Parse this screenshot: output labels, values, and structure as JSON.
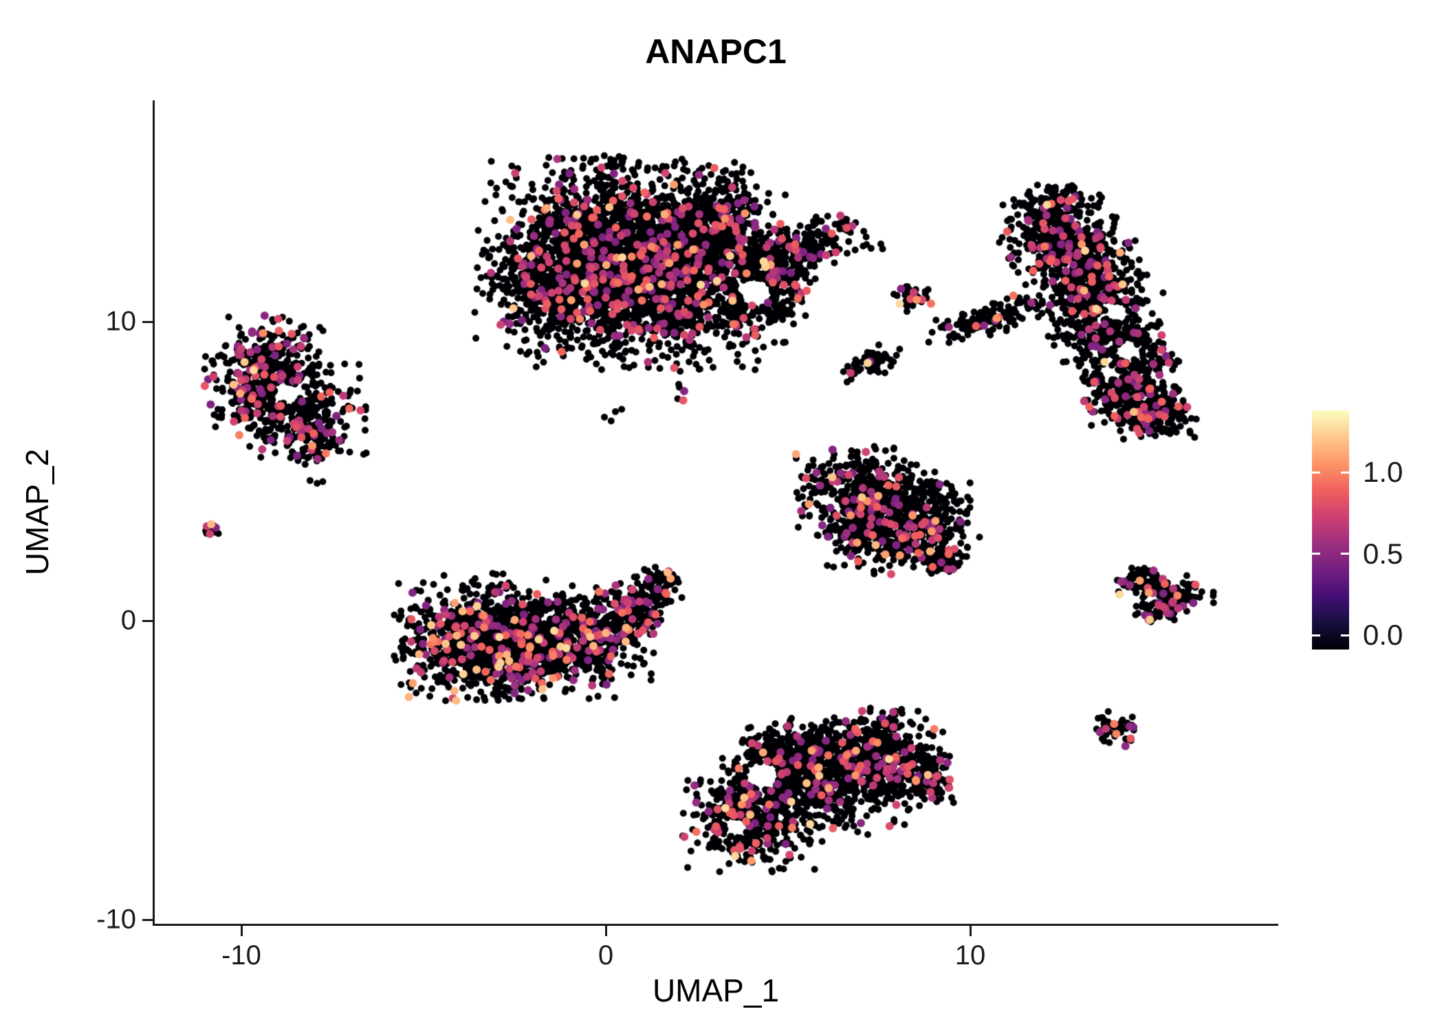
{
  "title": "ANAPC1",
  "chart_data": {
    "type": "scatter",
    "title": "ANAPC1",
    "subtitle": "",
    "xlabel": "UMAP_1",
    "ylabel": "UMAP_2",
    "xlim": [
      -12.4,
      18.4
    ],
    "ylim": [
      -10.2,
      17.4
    ],
    "x_ticks": [
      -10,
      0,
      10
    ],
    "x_tick_labels": [
      "-10",
      "0",
      "10"
    ],
    "y_ticks": [
      -10,
      0,
      10
    ],
    "y_tick_labels": [
      "-10",
      "0",
      "10"
    ],
    "grid": false,
    "background": "#ffffff",
    "colormap": "magma",
    "colormap_stops": [
      "#000004",
      "#180F3E",
      "#440F76",
      "#721F81",
      "#9E2F7F",
      "#CD4071",
      "#F1605D",
      "#FD9567",
      "#FEC98D",
      "#FCFDBF"
    ],
    "point_color_zero": "#000004",
    "value_range": [
      0,
      1.4
    ],
    "legend": {
      "position": "right",
      "tick_labels": [
        "1.0",
        "0.5",
        "0.0"
      ],
      "tick_values": [
        1.0,
        0.5,
        0.0
      ]
    },
    "seed": 42,
    "point_radius": 5,
    "point_radius_colored": 6,
    "value_model": {
      "base": 0.5,
      "span": 0.45,
      "power": 1.3,
      "high_min": 0.95,
      "high_max": 1.3
    },
    "clusters": [
      {
        "name": "top-center-large",
        "nonzero": 0.1,
        "high": 0.1,
        "blobs": [
          [
            0.2,
            12.8,
            1.6,
            1.2,
            1400,
            0
          ],
          [
            1.6,
            10.9,
            1.6,
            1.15,
            1250,
            0
          ],
          [
            -1.3,
            11.3,
            1.0,
            1.1,
            500,
            0
          ],
          [
            2.9,
            13.3,
            0.9,
            0.85,
            420,
            0
          ],
          [
            5.0,
            12.4,
            0.85,
            0.42,
            260,
            20
          ],
          [
            4.5,
            10.9,
            0.55,
            0.5,
            190,
            0
          ],
          [
            6.6,
            13.3,
            0.22,
            0.18,
            14,
            0
          ]
        ]
      },
      {
        "name": "left-upper",
        "nonzero": 0.12,
        "high": 0.1,
        "blobs": [
          [
            -9.3,
            8.6,
            0.75,
            0.7,
            300,
            0
          ],
          [
            -8.4,
            7.0,
            0.8,
            0.7,
            300,
            0
          ],
          [
            -9.9,
            7.3,
            0.45,
            0.5,
            100,
            0
          ],
          [
            -8.0,
            5.95,
            0.4,
            0.33,
            80,
            0
          ]
        ]
      },
      {
        "name": "left-tiny-dot",
        "nonzero": 0.25,
        "high": 0.2,
        "blobs": [
          [
            -10.85,
            3.0,
            0.12,
            0.1,
            14,
            0
          ]
        ]
      },
      {
        "name": "center-left-lower",
        "nonzero": 0.13,
        "high": 0.25,
        "blobs": [
          [
            -3.6,
            -0.6,
            1.0,
            0.95,
            720,
            0
          ],
          [
            -1.9,
            -0.9,
            1.1,
            0.8,
            680,
            0
          ],
          [
            -0.2,
            -0.4,
            0.8,
            0.7,
            300,
            0
          ],
          [
            0.9,
            0.6,
            0.5,
            0.42,
            130,
            30
          ],
          [
            1.6,
            1.2,
            0.28,
            0.26,
            45,
            0
          ]
        ]
      },
      {
        "name": "center-right-mid",
        "nonzero": 0.11,
        "high": 0.12,
        "blobs": [
          [
            7.2,
            4.3,
            0.9,
            0.68,
            430,
            0
          ],
          [
            8.5,
            3.2,
            0.8,
            0.72,
            400,
            0
          ],
          [
            7.0,
            2.8,
            0.5,
            0.5,
            130,
            0
          ],
          [
            9.2,
            2.1,
            0.34,
            0.28,
            60,
            0
          ]
        ]
      },
      {
        "name": "bottom-center",
        "nonzero": 0.09,
        "high": 0.15,
        "blobs": [
          [
            4.0,
            -6.6,
            0.85,
            0.8,
            480,
            0
          ],
          [
            5.8,
            -5.2,
            1.15,
            0.85,
            720,
            0
          ],
          [
            7.6,
            -4.4,
            0.8,
            0.68,
            360,
            0
          ],
          [
            4.8,
            -4.5,
            0.55,
            0.45,
            180,
            0
          ],
          [
            8.6,
            -5.3,
            0.5,
            0.45,
            120,
            0
          ]
        ]
      },
      {
        "name": "right-large-curved",
        "nonzero": 0.1,
        "high": 0.08,
        "blobs": [
          [
            12.5,
            13.0,
            0.75,
            0.7,
            340,
            0
          ],
          [
            13.1,
            11.5,
            0.7,
            0.78,
            340,
            0
          ],
          [
            13.7,
            9.8,
            0.7,
            0.85,
            370,
            0
          ],
          [
            14.4,
            8.0,
            0.65,
            0.75,
            320,
            0
          ],
          [
            15.1,
            6.9,
            0.5,
            0.45,
            170,
            0
          ],
          [
            12.2,
            13.9,
            0.38,
            0.28,
            60,
            0
          ]
        ]
      },
      {
        "name": "small-mid-round",
        "nonzero": 0.15,
        "high": 0.3,
        "blobs": [
          [
            8.4,
            10.8,
            0.26,
            0.2,
            40,
            0
          ]
        ]
      },
      {
        "name": "small-mid-elongated",
        "nonzero": 0.12,
        "high": 0.25,
        "blobs": [
          [
            10.5,
            10.1,
            0.8,
            0.25,
            120,
            18
          ]
        ]
      },
      {
        "name": "small-mid-diagonal",
        "nonzero": 0.12,
        "high": 0.2,
        "blobs": [
          [
            7.3,
            8.6,
            0.42,
            0.22,
            55,
            30
          ]
        ]
      },
      {
        "name": "right-small-v",
        "nonzero": 0.15,
        "high": 0.3,
        "blobs": [
          [
            14.7,
            1.3,
            0.33,
            0.28,
            65,
            0
          ],
          [
            15.6,
            1.0,
            0.5,
            0.26,
            85,
            -15
          ],
          [
            15.2,
            0.4,
            0.4,
            0.2,
            55,
            10
          ]
        ]
      },
      {
        "name": "right-tiny",
        "nonzero": 0.15,
        "high": 0.3,
        "blobs": [
          [
            14.0,
            -3.6,
            0.26,
            0.26,
            55,
            0
          ]
        ]
      },
      {
        "name": "stray-points",
        "nonzero": 0.1,
        "high": 0.1,
        "blobs": [
          [
            2.0,
            7.6,
            0.25,
            0.2,
            5,
            0
          ],
          [
            7.3,
            12.4,
            0.3,
            0.2,
            6,
            0
          ],
          [
            0.3,
            6.9,
            0.2,
            0.15,
            4,
            0
          ],
          [
            -7.9,
            4.7,
            0.15,
            0.12,
            3,
            0
          ]
        ]
      }
    ],
    "holes": [
      [
        4.1,
        11.0,
        0.45
      ],
      [
        2.7,
        9.4,
        0.28
      ],
      [
        -8.7,
        7.6,
        0.35
      ],
      [
        4.3,
        -5.2,
        0.45
      ],
      [
        3.6,
        -6.9,
        0.3
      ],
      [
        14.0,
        10.3,
        0.3
      ],
      [
        14.3,
        9.0,
        0.33
      ],
      [
        13.8,
        8.3,
        0.25
      ]
    ]
  }
}
